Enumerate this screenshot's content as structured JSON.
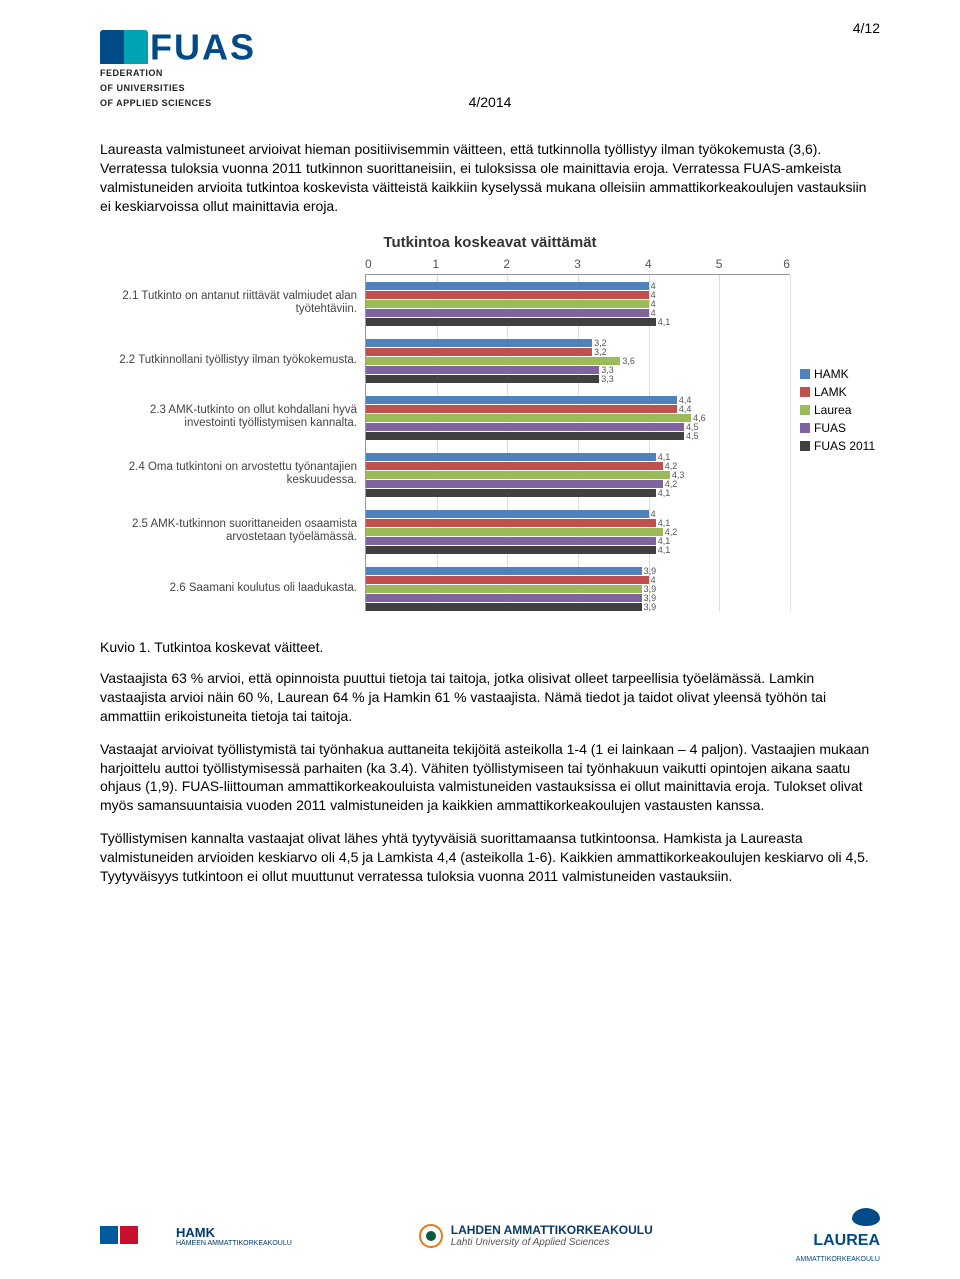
{
  "page_number": "4/12",
  "doc_id": "4/2014",
  "logo": {
    "main": "FUAS",
    "sub_lines": [
      "FEDERATION",
      "OF UNIVERSITIES",
      "OF APPLIED SCIENCES"
    ]
  },
  "para1": "Laureasta valmistuneet arvioivat hieman positiivisemmin väitteen, että tutkinnolla työllistyy ilman työkokemusta (3,6). Verratessa tuloksia vuonna 2011 tutkinnon suorittaneisiin, ei tuloksissa ole mainittavia eroja. Verratessa FUAS-amkeista valmistuneiden arvioita tutkintoa koskevista väitteistä kaikkiin kyselyssä mukana olleisiin ammattikorkeakoulujen vastauksiin ei keskiarvoissa ollut mainittavia eroja.",
  "chart": {
    "type": "bar",
    "title": "Tutkintoa koskeavat väittämät",
    "x_ticks": [
      "0",
      "1",
      "2",
      "3",
      "4",
      "5",
      "6"
    ],
    "xlim": 6,
    "series": [
      {
        "name": "HAMK",
        "color": "#4f81bd"
      },
      {
        "name": "LAMK",
        "color": "#c0504d"
      },
      {
        "name": "Laurea",
        "color": "#9bbb59"
      },
      {
        "name": "FUAS",
        "color": "#8064a2"
      },
      {
        "name": "FUAS 2011",
        "color": "#404040"
      }
    ],
    "groups": [
      {
        "label": "2.1 Tutkinto on antanut riittävät valmiudet alan työtehtäviin.",
        "values": [
          4,
          4,
          4,
          4,
          4.1
        ]
      },
      {
        "label": "2.2 Tutkinnollani työllistyy ilman työkokemusta.",
        "values": [
          3.2,
          3.2,
          3.6,
          3.3,
          3.3
        ]
      },
      {
        "label": "2.3 AMK-tutkinto on ollut kohdallani hyvä investointi työllistymisen kannalta.",
        "values": [
          4.4,
          4.4,
          4.6,
          4.5,
          4.5
        ]
      },
      {
        "label": "2.4 Oma tutkintoni on arvostettu työnantajien keskuudessa.",
        "values": [
          4.1,
          4.2,
          4.3,
          4.2,
          4.1
        ]
      },
      {
        "label": "2.5 AMK-tutkinnon suorittaneiden osaamista arvostetaan työelämässä.",
        "values": [
          4,
          4.1,
          4.2,
          4.1,
          4.1
        ]
      },
      {
        "label": "2.6 Saamani koulutus oli laadukasta.",
        "values": [
          3.9,
          4,
          3.9,
          3.9,
          3.9
        ]
      }
    ],
    "grid_color": "#dddddd",
    "axis_color": "#999999",
    "value_label_fontsize": 9,
    "tick_fontsize": 12
  },
  "caption": "Kuvio 1. Tutkintoa koskevat väitteet.",
  "para2": "Vastaajista 63 % arvioi, että opinnoista puuttui tietoja tai taitoja, jotka olisivat olleet tarpeellisia työelämässä. Lamkin vastaajista arvioi näin 60 %, Laurean 64 % ja Hamkin 61 % vastaajista. Nämä tiedot ja taidot olivat yleensä työhön tai ammattiin erikoistuneita tietoja tai taitoja.",
  "para3": "Vastaajat arvioivat työllistymistä tai työnhakua auttaneita tekijöitä asteikolla 1-4 (1 ei lainkaan – 4 paljon). Vastaajien mukaan harjoittelu auttoi työllistymisessä parhaiten (ka 3.4). Vähiten työllistymiseen tai työnhakuun vaikutti opintojen aikana saatu ohjaus (1,9). FUAS-liittouman ammattikorkeakouluista valmistuneiden vastauksissa ei ollut mainittavia eroja. Tulokset olivat myös samansuuntaisia vuoden 2011 valmistuneiden ja kaikkien ammattikorkeakoulujen vastausten kanssa.",
  "para4": "Työllistymisen kannalta vastaajat olivat lähes yhtä tyytyväisiä suorittamaansa tutkintoonsa. Hamkista ja Laureasta valmistuneiden arvioiden keskiarvo oli 4,5 ja Lamkista 4,4 (asteikolla 1-6). Kaikkien ammattikorkeakoulujen keskiarvo oli 4,5. Tyytyväisyys tutkintoon ei ollut muuttunut verratessa tuloksia vuonna 2011 valmistuneiden vastauksiin.",
  "footer": {
    "hamk_label": "HAMK",
    "hamk_sub": "HÄMEEN AMMATTIKORKEAKOULU",
    "lahti_top": "LAHDEN AMMATTIKORKEAKOULU",
    "lahti_sub": "Lahti University of Applied Sciences",
    "laurea_label": "LAUREA",
    "laurea_sub": "AMMATTIKORKEAKOULU"
  }
}
